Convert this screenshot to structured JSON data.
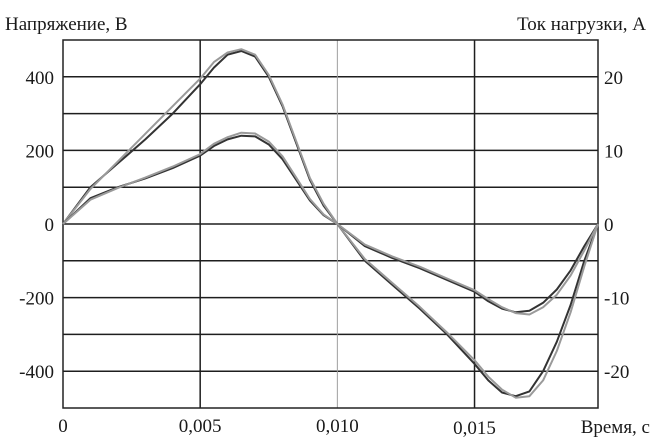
{
  "chart_data": {
    "type": "line",
    "y_left_label": "Напряжение, В",
    "y_right_label": "Ток нагрузки, А",
    "x_label": "Время, с",
    "x_range": [
      0,
      0.0195
    ],
    "y_left_range": [
      -500,
      500
    ],
    "y_right_range": [
      -25,
      25
    ],
    "x_ticks": [
      {
        "value": 0,
        "label": "0"
      },
      {
        "value": 0.005,
        "label": "0,005"
      },
      {
        "value": 0.01,
        "label": "0,010"
      },
      {
        "value": 0.015,
        "label": "0,015"
      }
    ],
    "y_left_ticks": [
      {
        "value": 400,
        "label": "400"
      },
      {
        "value": 200,
        "label": "200"
      },
      {
        "value": 0,
        "label": "0"
      },
      {
        "value": -200,
        "label": "-200"
      },
      {
        "value": -400,
        "label": "-400"
      }
    ],
    "y_right_ticks": [
      {
        "value": 20,
        "label": "20"
      },
      {
        "value": 10,
        "label": "10"
      },
      {
        "value": 0,
        "label": "0"
      },
      {
        "value": -10,
        "label": "-10"
      },
      {
        "value": -20,
        "label": "-20"
      }
    ],
    "grid": {
      "horizontal_dark": [
        -400,
        -300,
        -200,
        -100,
        0,
        100,
        200,
        300,
        400
      ],
      "horizontal_light": [],
      "vertical_dark": [
        0.005,
        0.015
      ],
      "vertical_light": [
        0.01
      ]
    },
    "series": [
      {
        "axis": "left",
        "color": "#333333",
        "x": [
          0,
          0.001,
          0.002,
          0.003,
          0.004,
          0.005,
          0.0055,
          0.006,
          0.0065,
          0.007,
          0.0075,
          0.008,
          0.0085,
          0.009,
          0.0095,
          0.01,
          0.011,
          0.012,
          0.013,
          0.014,
          0.015,
          0.0155,
          0.016,
          0.0165,
          0.017,
          0.0175,
          0.018,
          0.0185,
          0.019,
          0.0195
        ],
        "y": [
          0,
          100,
          165,
          230,
          300,
          380,
          425,
          460,
          470,
          455,
          400,
          320,
          220,
          120,
          50,
          0,
          -100,
          -165,
          -230,
          -300,
          -380,
          -425,
          -458,
          -468,
          -455,
          -400,
          -320,
          -220,
          -100,
          0
        ]
      },
      {
        "axis": "left",
        "color": "#9a9a9a",
        "x": [
          0,
          0.001,
          0.002,
          0.003,
          0.004,
          0.005,
          0.0055,
          0.006,
          0.0065,
          0.007,
          0.0075,
          0.008,
          0.0085,
          0.009,
          0.0095,
          0.01,
          0.011,
          0.012,
          0.013,
          0.014,
          0.015,
          0.0155,
          0.016,
          0.0165,
          0.017,
          0.0175,
          0.018,
          0.0185,
          0.019,
          0.0195
        ],
        "y": [
          0,
          95,
          170,
          245,
          320,
          395,
          440,
          466,
          475,
          460,
          405,
          325,
          225,
          125,
          55,
          0,
          -95,
          -160,
          -225,
          -295,
          -370,
          -415,
          -450,
          -472,
          -468,
          -425,
          -345,
          -240,
          -115,
          0
        ]
      },
      {
        "axis": "right",
        "color": "#333333",
        "x": [
          0,
          0.001,
          0.002,
          0.003,
          0.004,
          0.005,
          0.0055,
          0.006,
          0.0065,
          0.007,
          0.0075,
          0.008,
          0.0085,
          0.009,
          0.0095,
          0.01,
          0.011,
          0.012,
          0.013,
          0.014,
          0.015,
          0.0155,
          0.016,
          0.0165,
          0.017,
          0.0175,
          0.018,
          0.0185,
          0.019,
          0.0195
        ],
        "y": [
          0,
          3.5,
          5.0,
          6.2,
          7.6,
          9.3,
          10.6,
          11.5,
          12.0,
          11.9,
          10.8,
          8.8,
          6.0,
          3.2,
          1.2,
          0,
          -3.0,
          -4.6,
          -6.0,
          -7.6,
          -9.2,
          -10.5,
          -11.5,
          -12.0,
          -11.8,
          -10.7,
          -8.9,
          -6.3,
          -3.0,
          0
        ]
      },
      {
        "axis": "right",
        "color": "#9a9a9a",
        "x": [
          0,
          0.001,
          0.002,
          0.003,
          0.004,
          0.005,
          0.0055,
          0.006,
          0.0065,
          0.007,
          0.0075,
          0.008,
          0.0085,
          0.009,
          0.0095,
          0.01,
          0.011,
          0.012,
          0.013,
          0.014,
          0.015,
          0.0155,
          0.016,
          0.0165,
          0.017,
          0.0175,
          0.018,
          0.0185,
          0.019,
          0.0195
        ],
        "y": [
          0,
          3.3,
          4.9,
          6.3,
          7.8,
          9.5,
          10.9,
          11.8,
          12.4,
          12.3,
          11.2,
          9.2,
          6.3,
          3.4,
          1.3,
          0,
          -2.8,
          -4.4,
          -5.8,
          -7.4,
          -9.0,
          -10.2,
          -11.3,
          -12.1,
          -12.3,
          -11.3,
          -9.6,
          -7.0,
          -3.6,
          0
        ]
      }
    ]
  }
}
